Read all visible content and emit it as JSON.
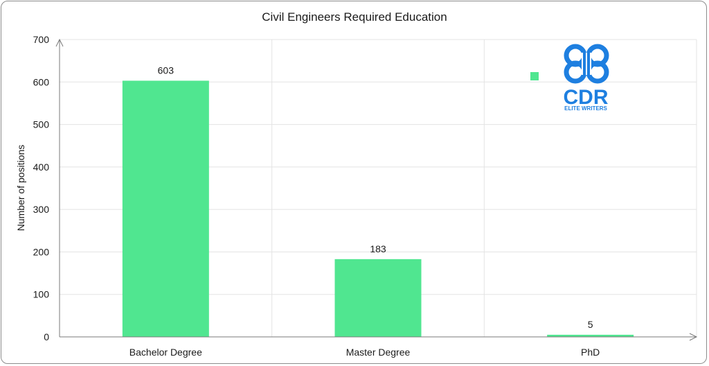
{
  "chart_data": {
    "type": "bar",
    "title": "Civil Engineers Required Education",
    "xlabel": "",
    "ylabel": "Number of positions",
    "categories": [
      "Bachelor Degree",
      "Master Degree",
      "PhD"
    ],
    "values": [
      603,
      183,
      5
    ],
    "ylim": [
      0,
      700
    ],
    "yticks": [
      0,
      100,
      200,
      300,
      400,
      500,
      600,
      700
    ],
    "grid": true,
    "bar_color": "#50e690",
    "data_labels": [
      "603",
      "183",
      "5"
    ]
  },
  "logo": {
    "name": "cdr-logo-icon",
    "text": "CDR",
    "subtext": "ELITE WRITERS",
    "color": "#1e7fe0"
  }
}
